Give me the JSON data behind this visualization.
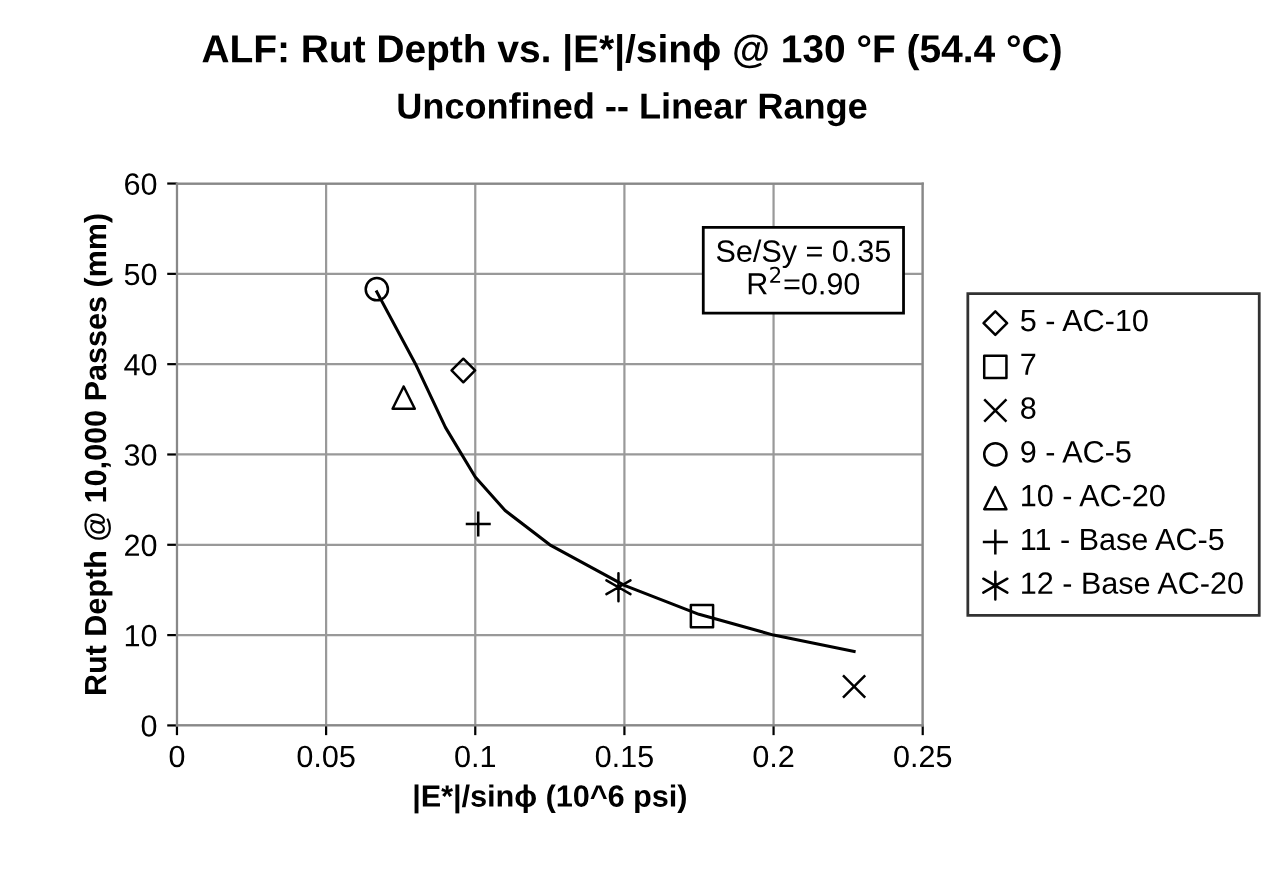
{
  "chart_data": {
    "type": "scatter",
    "title": "ALF: Rut Depth vs. |E*|/sinϕ @ 130 °F (54.4 °C)",
    "subtitle": "Unconfined -- Linear Range",
    "xlabel": "|E*|/sinϕ (10^6 psi)",
    "ylabel": "Rut Depth @ 10,000 Passes (mm)",
    "xlim": [
      0,
      0.25
    ],
    "ylim": [
      0,
      60
    ],
    "xticks": [
      0,
      0.05,
      0.1,
      0.15,
      0.2,
      0.25
    ],
    "yticks": [
      0,
      10,
      20,
      30,
      40,
      50,
      60
    ],
    "grid": true,
    "legend": "right",
    "annotations": [
      "Se/Sy = 0.35\nR$^{2}$=0.90"
    ],
    "series": [
      {
        "name": "5 - AC-10",
        "color": "#000000",
        "marker": "diamond",
        "x": [
          0.096
        ],
        "values": [
          39.3
        ]
      },
      {
        "name": "7",
        "color": "#000000",
        "marker": "square",
        "x": [
          0.176
        ],
        "values": [
          12.1
        ]
      },
      {
        "name": "8",
        "color": "#000000",
        "marker": "cross",
        "x": [
          0.227
        ],
        "values": [
          4.3
        ]
      },
      {
        "name": "9 - AC-5",
        "color": "#000000",
        "marker": "circle",
        "x": [
          0.067
        ],
        "values": [
          48.3
        ]
      },
      {
        "name": "10 - AC-20",
        "color": "#000000",
        "marker": "triangle",
        "x": [
          0.076
        ],
        "values": [
          36.3
        ]
      },
      {
        "name": "11 - Base AC-5",
        "color": "#000000",
        "x": [
          0.101
        ],
        "values": [
          22.3
        ]
      },
      {
        "name": "12 - Base AC-20",
        "color": "#000000",
        "x": [
          0.148
        ],
        "values": [
          15.3
        ]
      },
      {
        "type": "line",
        "color": "#000000",
        "marker": "none",
        "x": [
          0.067,
          0.08,
          0.09,
          0.1,
          0.11,
          0.125,
          0.15,
          0.175,
          0.2,
          0.227
        ],
        "values": [
          48,
          40,
          33,
          27.5,
          23.8,
          20,
          15.5,
          12.3,
          10,
          8.2
        ]
      }
    ]
  }
}
